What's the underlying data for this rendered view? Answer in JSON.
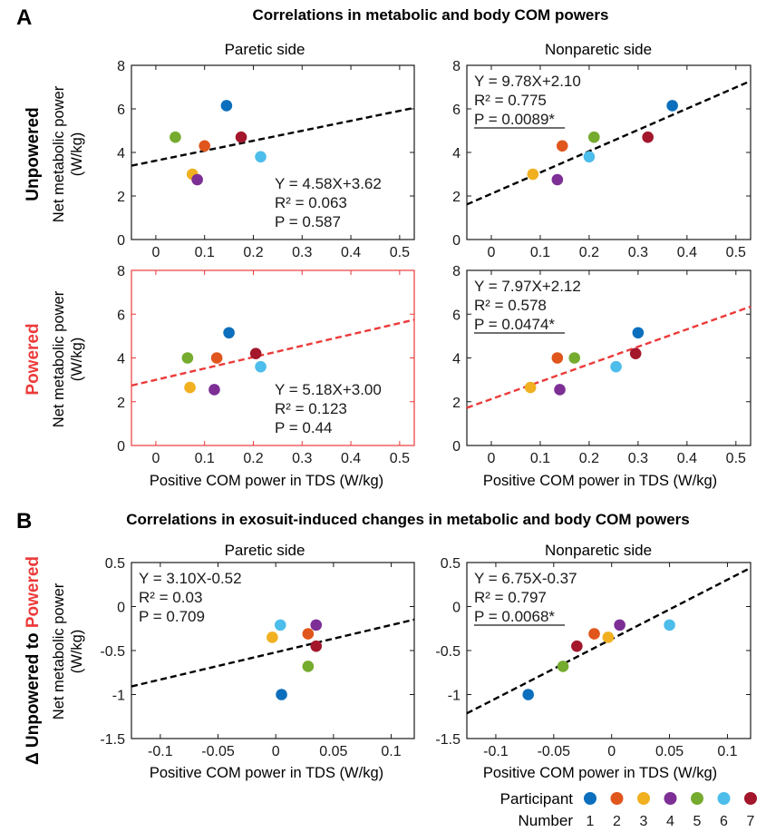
{
  "figure": {
    "panel_a": {
      "letter": "A",
      "title": "Correlations in metabolic and body COM powers"
    },
    "panel_b": {
      "letter": "B",
      "title": "Correlations in exosuit-induced changes in metabolic and body COM powers"
    },
    "col_titles": [
      "Paretic side",
      "Nonparetic side"
    ],
    "row_labels": {
      "unpowered": "Unpowered",
      "powered": "Powered",
      "delta_prefix": "Δ Unpowered to ",
      "delta_suffix": "Powered"
    },
    "ylabel_line1": "Net metabolic power",
    "ylabel_line2": "(W/kg)",
    "xlabel": "Positive COM power in TDS (W/kg)",
    "legend": {
      "participant_label": "Participant",
      "number_label": "Number",
      "numbers": [
        "1",
        "2",
        "3",
        "4",
        "5",
        "6",
        "7"
      ]
    }
  },
  "colors": {
    "participants": [
      "#0c6fbd",
      "#e0561c",
      "#f0b020",
      "#7d2f96",
      "#75ab2e",
      "#4dbdeb",
      "#a3162b"
    ],
    "black_fit": "#000000",
    "red_fit": "#ec3a3a",
    "powered_frame": "#ec3a3a",
    "powered_label": "#ec3a3a"
  },
  "chart_data": [
    {
      "id": "A-unpowered-paretic",
      "type": "scatter",
      "row_label": "Unpowered",
      "col_title": "Paretic side",
      "xlim": [
        -0.05,
        0.53
      ],
      "ylim": [
        0,
        8
      ],
      "xticks": [
        0,
        0.1,
        0.2,
        0.3,
        0.4,
        0.5
      ],
      "xtick_labels": [
        "0",
        "0.1",
        "0.2",
        "0.3",
        "0.4",
        "0.5"
      ],
      "yticks": [
        0,
        2,
        4,
        6,
        8
      ],
      "ytick_labels": [
        "0",
        "2",
        "4",
        "6",
        "8"
      ],
      "points": [
        [
          0.145,
          6.15
        ],
        [
          0.1,
          4.3
        ],
        [
          0.075,
          3.0
        ],
        [
          0.085,
          2.75
        ],
        [
          0.04,
          4.7
        ],
        [
          0.215,
          3.8
        ],
        [
          0.175,
          4.7
        ]
      ],
      "fit": {
        "slope": 4.58,
        "intercept": 3.62
      },
      "stats": [
        "Y = 4.58X+3.62",
        "R² = 0.063",
        "P = 0.587"
      ],
      "stats_pos": "bottom-right",
      "p_significant": false
    },
    {
      "id": "A-unpowered-nonparetic",
      "type": "scatter",
      "row_label": "Unpowered",
      "col_title": "Nonparetic side",
      "xlim": [
        -0.05,
        0.53
      ],
      "ylim": [
        0,
        8
      ],
      "xticks": [
        0,
        0.1,
        0.2,
        0.3,
        0.4,
        0.5
      ],
      "xtick_labels": [
        "0",
        "0.1",
        "0.2",
        "0.3",
        "0.4",
        "0.5"
      ],
      "yticks": [
        0,
        2,
        4,
        6,
        8
      ],
      "ytick_labels": [
        "0",
        "2",
        "4",
        "6",
        "8"
      ],
      "points": [
        [
          0.37,
          6.15
        ],
        [
          0.145,
          4.3
        ],
        [
          0.085,
          3.0
        ],
        [
          0.135,
          2.75
        ],
        [
          0.21,
          4.7
        ],
        [
          0.2,
          3.8
        ],
        [
          0.32,
          4.7
        ]
      ],
      "fit": {
        "slope": 9.78,
        "intercept": 2.1
      },
      "stats": [
        "Y = 9.78X+2.10",
        "R² = 0.775",
        "P = 0.0089*"
      ],
      "stats_pos": "top-left",
      "p_significant": true
    },
    {
      "id": "A-powered-paretic",
      "type": "scatter",
      "row_label": "Powered",
      "col_title": "Paretic side",
      "xlim": [
        -0.05,
        0.53
      ],
      "ylim": [
        0,
        8
      ],
      "xticks": [
        0,
        0.1,
        0.2,
        0.3,
        0.4,
        0.5
      ],
      "xtick_labels": [
        "0",
        "0.1",
        "0.2",
        "0.3",
        "0.4",
        "0.5"
      ],
      "yticks": [
        0,
        2,
        4,
        6,
        8
      ],
      "ytick_labels": [
        "0",
        "2",
        "4",
        "6",
        "8"
      ],
      "points": [
        [
          0.15,
          5.15
        ],
        [
          0.125,
          4.0
        ],
        [
          0.07,
          2.65
        ],
        [
          0.12,
          2.55
        ],
        [
          0.065,
          4.0
        ],
        [
          0.215,
          3.6
        ],
        [
          0.205,
          4.2
        ]
      ],
      "fit": {
        "slope": 5.18,
        "intercept": 3.0
      },
      "stats": [
        "Y = 5.18X+3.00",
        "R² = 0.123",
        "P = 0.44"
      ],
      "stats_pos": "bottom-right",
      "p_significant": false
    },
    {
      "id": "A-powered-nonparetic",
      "type": "scatter",
      "row_label": "Powered",
      "col_title": "Nonparetic side",
      "xlim": [
        -0.05,
        0.53
      ],
      "ylim": [
        0,
        8
      ],
      "xticks": [
        0,
        0.1,
        0.2,
        0.3,
        0.4,
        0.5
      ],
      "xtick_labels": [
        "0",
        "0.1",
        "0.2",
        "0.3",
        "0.4",
        "0.5"
      ],
      "yticks": [
        0,
        2,
        4,
        6,
        8
      ],
      "ytick_labels": [
        "0",
        "2",
        "4",
        "6",
        "8"
      ],
      "points": [
        [
          0.3,
          5.15
        ],
        [
          0.135,
          4.0
        ],
        [
          0.08,
          2.65
        ],
        [
          0.14,
          2.55
        ],
        [
          0.17,
          4.0
        ],
        [
          0.255,
          3.6
        ],
        [
          0.295,
          4.2
        ]
      ],
      "fit": {
        "slope": 7.97,
        "intercept": 2.12
      },
      "stats": [
        "Y = 7.97X+2.12",
        "R² = 0.578",
        "P = 0.0474*"
      ],
      "stats_pos": "top-left",
      "p_significant": true
    },
    {
      "id": "B-delta-paretic",
      "type": "scatter",
      "row_label": "Δ Unpowered to Powered",
      "col_title": "Paretic side",
      "xlim": [
        -0.125,
        0.12
      ],
      "ylim": [
        -1.5,
        0.5
      ],
      "xticks": [
        -0.1,
        -0.05,
        0,
        0.05,
        0.1
      ],
      "xtick_labels": [
        "-0.1",
        "-0.05",
        "0",
        "0.05",
        "0.1"
      ],
      "yticks": [
        -1.5,
        -1,
        -0.5,
        0,
        0.5
      ],
      "ytick_labels": [
        "-1.5",
        "-1",
        "-0.5",
        "0",
        "0.5"
      ],
      "points": [
        [
          0.005,
          -1.0
        ],
        [
          0.028,
          -0.31
        ],
        [
          -0.003,
          -0.35
        ],
        [
          0.035,
          -0.21
        ],
        [
          0.028,
          -0.68
        ],
        [
          0.004,
          -0.21
        ],
        [
          0.035,
          -0.45
        ]
      ],
      "fit": {
        "slope": 3.1,
        "intercept": -0.52
      },
      "stats": [
        "Y = 3.10X-0.52",
        "R² = 0.03",
        "P = 0.709"
      ],
      "stats_pos": "top-left",
      "p_significant": false
    },
    {
      "id": "B-delta-nonparetic",
      "type": "scatter",
      "row_label": "Δ Unpowered to Powered",
      "col_title": "Nonparetic side",
      "xlim": [
        -0.125,
        0.12
      ],
      "ylim": [
        -1.5,
        0.5
      ],
      "xticks": [
        -0.1,
        -0.05,
        0,
        0.05,
        0.1
      ],
      "xtick_labels": [
        "-0.1",
        "-0.05",
        "0",
        "0.05",
        "0.1"
      ],
      "yticks": [
        -1.5,
        -1,
        -0.5,
        0,
        0.5
      ],
      "ytick_labels": [
        "-1.5",
        "-1",
        "-0.5",
        "0",
        "0.5"
      ],
      "points": [
        [
          -0.072,
          -1.0
        ],
        [
          -0.015,
          -0.31
        ],
        [
          -0.003,
          -0.35
        ],
        [
          0.007,
          -0.21
        ],
        [
          -0.042,
          -0.68
        ],
        [
          0.05,
          -0.21
        ],
        [
          -0.03,
          -0.45
        ]
      ],
      "fit": {
        "slope": 6.75,
        "intercept": -0.37
      },
      "stats": [
        "Y = 6.75X-0.37",
        "R² = 0.797",
        "P = 0.0068*"
      ],
      "stats_pos": "top-left",
      "p_significant": true
    }
  ]
}
